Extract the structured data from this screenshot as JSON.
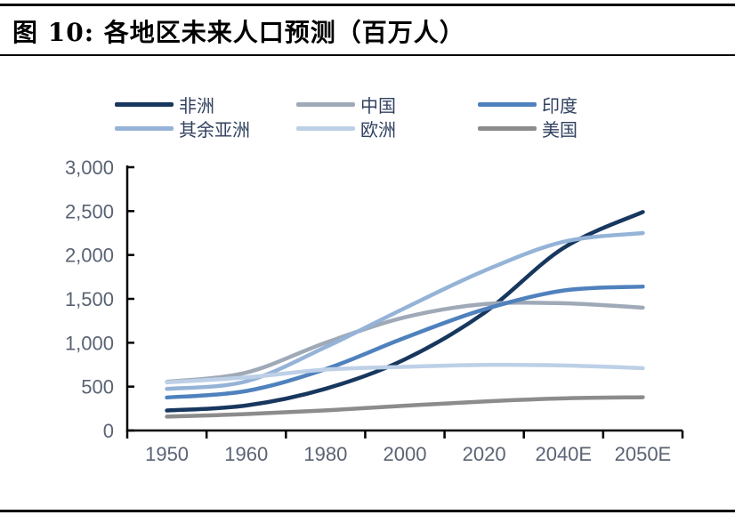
{
  "figure": {
    "title": "图 10:  各地区未来人口预测（百万人）"
  },
  "colors": {
    "axis_line": "#000000",
    "axis_label": "#5a6374",
    "legend_text": "#31415f",
    "rule": "#000000"
  },
  "chart_data": {
    "type": "line",
    "title": "各地区未来人口预测（百万人）",
    "unit": "百万人",
    "smooth": true,
    "grid": false,
    "legend_position": "top",
    "categories": [
      "1950",
      "1960",
      "1980",
      "2000",
      "2020",
      "2040E",
      "2050E"
    ],
    "series": [
      {
        "id": "africa",
        "name": "非洲",
        "color": "#17375e",
        "values": [
          228,
          285,
          476,
          811,
          1340,
          2080,
          2490
        ]
      },
      {
        "id": "china",
        "name": "中国",
        "color": "#9fa9b7",
        "values": [
          554,
          660,
          1000,
          1290,
          1440,
          1450,
          1400
        ]
      },
      {
        "id": "india",
        "name": "印度",
        "color": "#4f81bd",
        "values": [
          376,
          450,
          699,
          1057,
          1380,
          1595,
          1640
        ]
      },
      {
        "id": "rest-of-asia",
        "name": "其余亚洲",
        "color": "#95b3d7",
        "values": [
          474,
          560,
          950,
          1395,
          1820,
          2150,
          2250
        ]
      },
      {
        "id": "europe",
        "name": "欧洲",
        "color": "#bdd0e7",
        "values": [
          549,
          605,
          694,
          726,
          748,
          741,
          710
        ]
      },
      {
        "id": "usa",
        "name": "美国",
        "color": "#8c8c8c",
        "values": [
          158,
          187,
          229,
          282,
          331,
          366,
          379
        ]
      }
    ],
    "ylim": [
      0,
      3000
    ],
    "ytick_step": 500,
    "ytick_labels": [
      "0",
      "500",
      "1,000",
      "1,500",
      "2,000",
      "2,500",
      "3,000"
    ]
  }
}
